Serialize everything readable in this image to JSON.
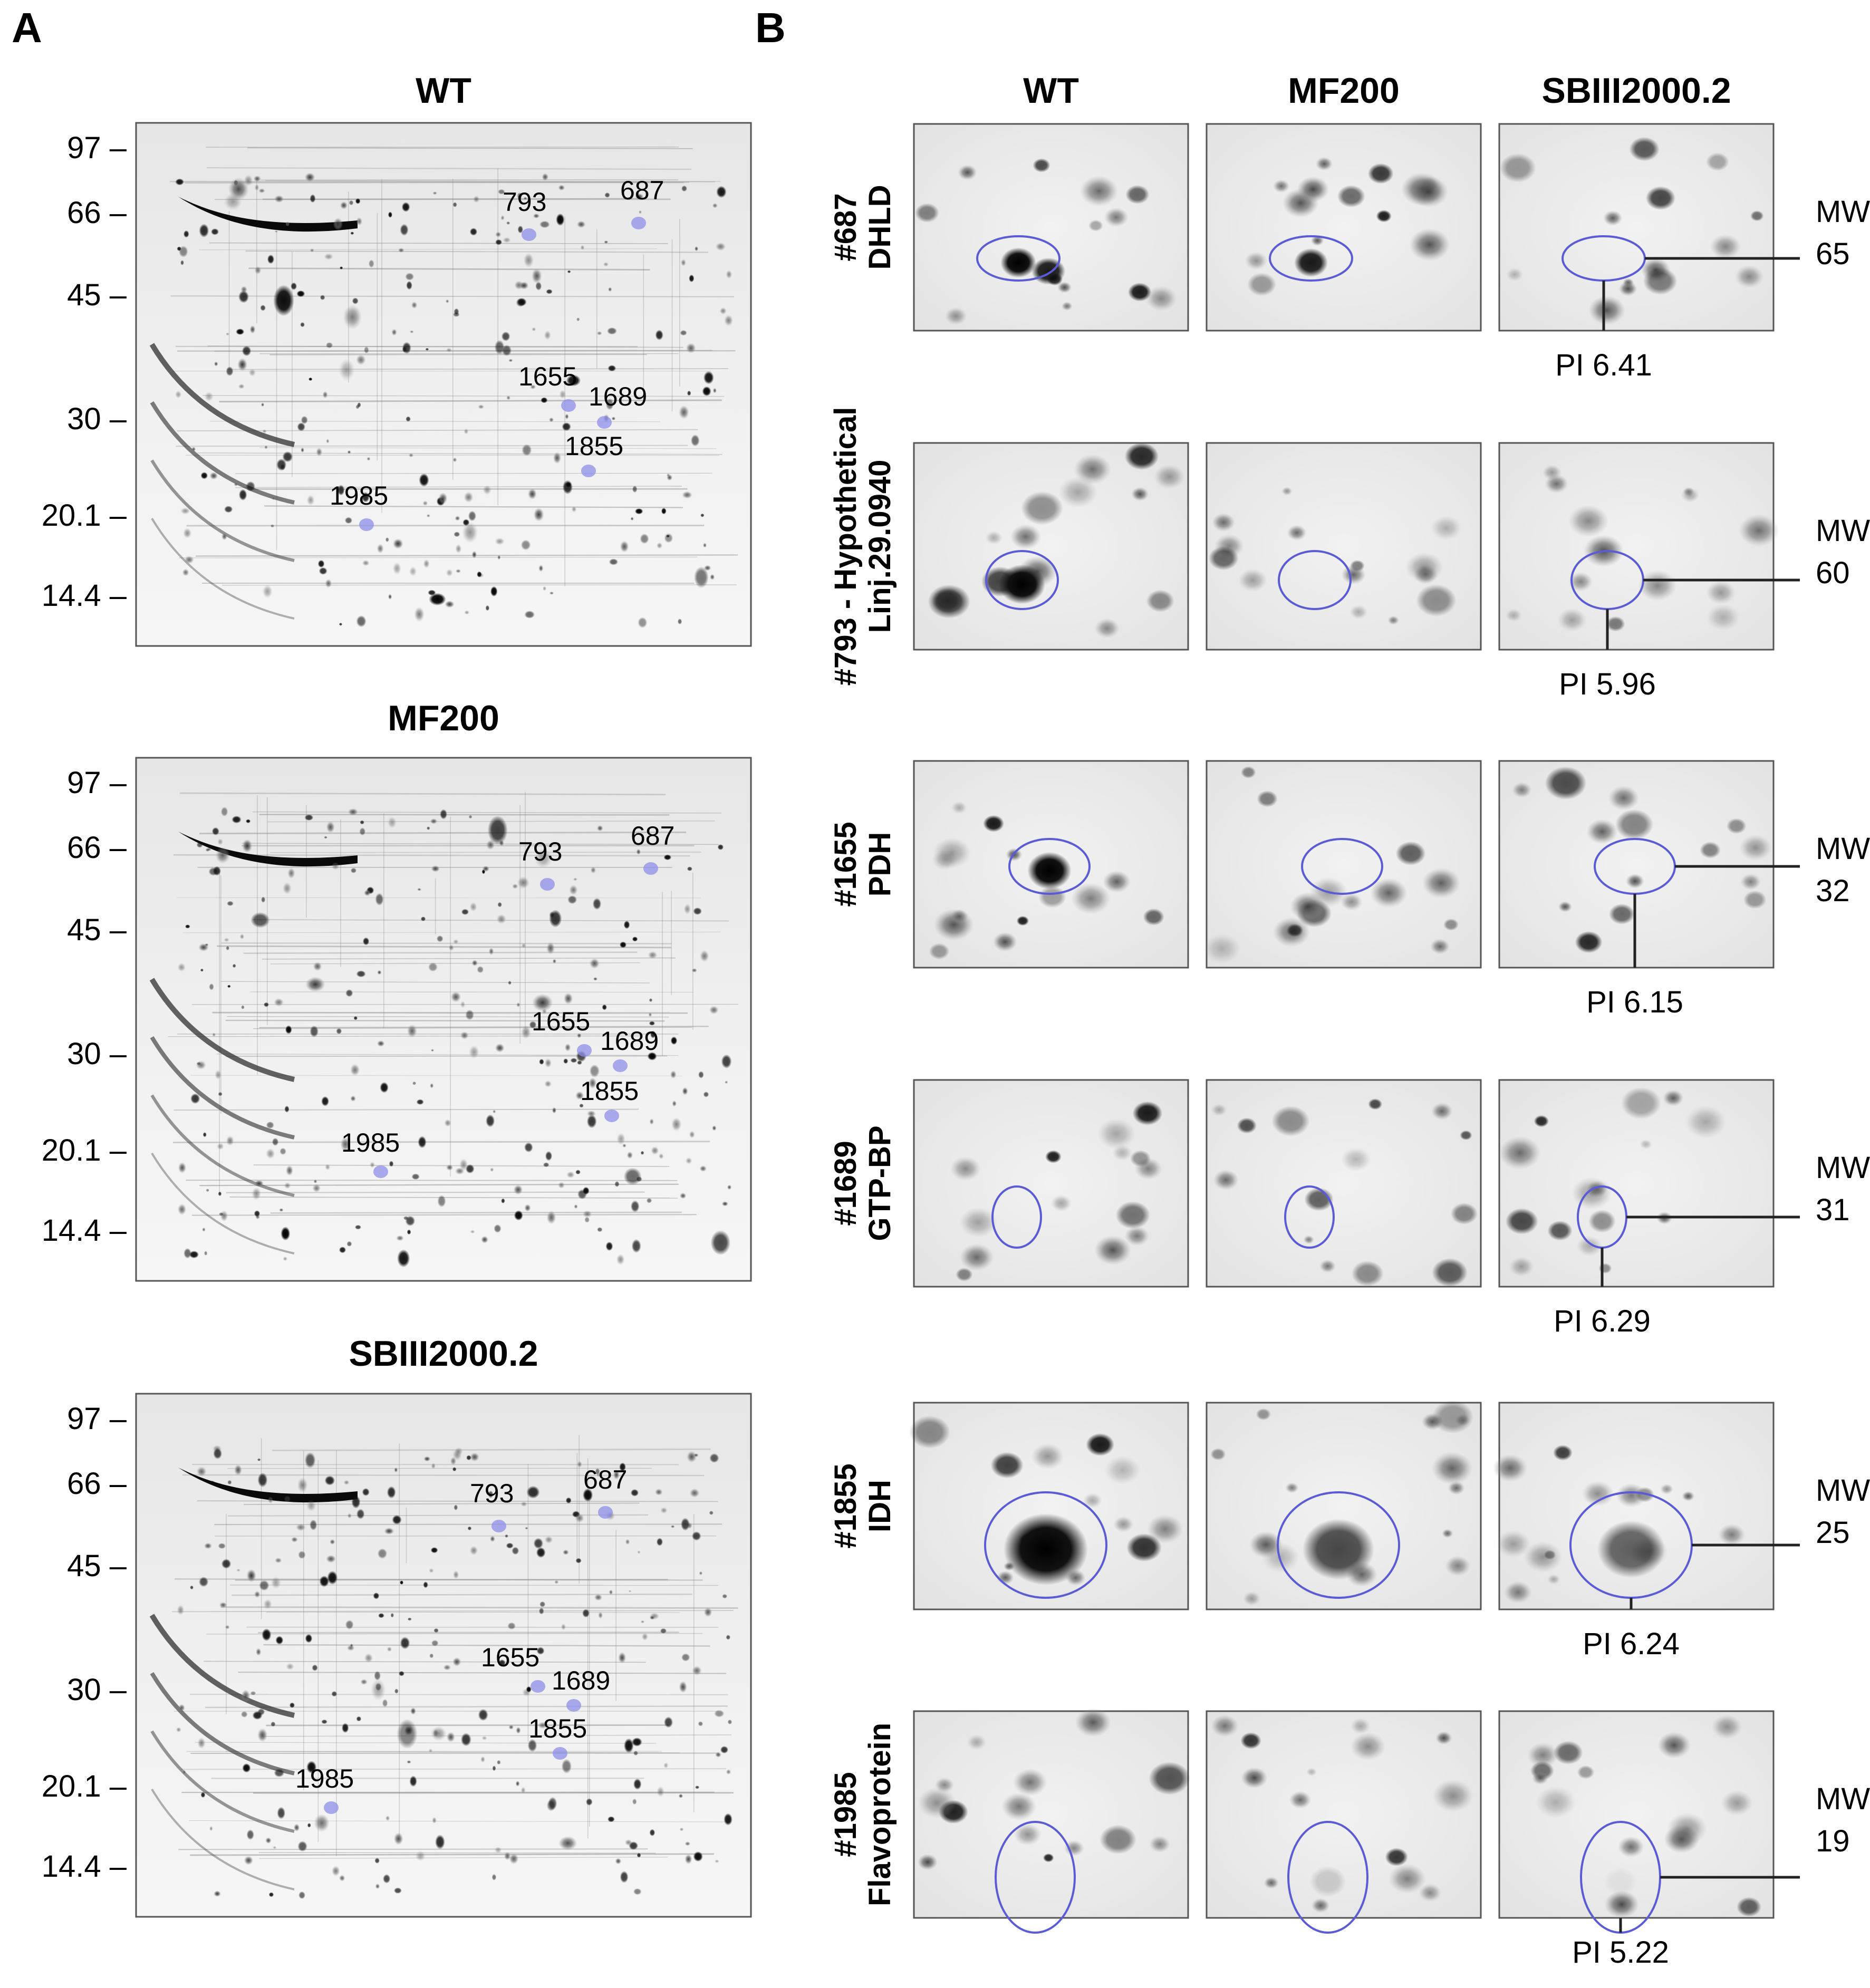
{
  "panel_a": {
    "letter": "A",
    "gels": [
      {
        "title": "WT",
        "mw_ticks": [
          "97 –",
          "66 –",
          "45 –",
          "30 –",
          "20.1 –",
          "14.4 –"
        ],
        "spots": [
          "793",
          "687",
          "1655",
          "1689",
          "1855",
          "1985"
        ]
      },
      {
        "title": "MF200",
        "mw_ticks": [
          "97 –",
          "66 –",
          "45 –",
          "30 –",
          "20.1 –",
          "14.4 –"
        ],
        "spots": [
          "793",
          "687",
          "1655",
          "1689",
          "1855",
          "1985"
        ]
      },
      {
        "title": "SBIII2000.2",
        "mw_ticks": [
          "97 –",
          "66 –",
          "45 –",
          "30 –",
          "20.1 –",
          "14.4 –"
        ],
        "spots": [
          "793",
          "687",
          "1655",
          "1689",
          "1855",
          "1985"
        ]
      }
    ]
  },
  "panel_b": {
    "letter": "B",
    "columns": [
      "WT",
      "MF200",
      "SBIII2000.2"
    ],
    "rows": [
      {
        "spot": "#687",
        "name": "DHLD",
        "mw_label": "MW",
        "mw_value": "65",
        "pi": "PI 6.41",
        "intensity": [
          1.0,
          0.9,
          0.0
        ]
      },
      {
        "spot": "#793 - Hypothetical",
        "name": "Linj.29.0940",
        "mw_label": "MW",
        "mw_value": "60",
        "pi": "PI 5.96",
        "intensity": [
          1.0,
          0.0,
          0.0
        ]
      },
      {
        "spot": "#1655",
        "name": "PDH",
        "mw_label": "MW",
        "mw_value": "32",
        "pi": "PI 6.15",
        "intensity": [
          1.0,
          0.0,
          0.0
        ]
      },
      {
        "spot": "#1689",
        "name": "GTP-BP",
        "mw_label": "MW",
        "mw_value": "31",
        "pi": "PI 6.29",
        "intensity": [
          0.0,
          0.0,
          0.4
        ]
      },
      {
        "spot": "#1855",
        "name": "IDH",
        "mw_label": "MW",
        "mw_value": "25",
        "pi": "PI 6.24",
        "intensity": [
          1.0,
          0.7,
          0.6
        ]
      },
      {
        "spot": "#1985",
        "name": "Flavoprotein",
        "mw_label": "MW",
        "mw_value": "19",
        "pi": "PI 5.22",
        "intensity": [
          0.0,
          0.15,
          0.05
        ]
      }
    ]
  },
  "colors": {
    "outline": "#5b5bd6",
    "spot_fill": "#8d8de8",
    "ink": "#000000"
  }
}
